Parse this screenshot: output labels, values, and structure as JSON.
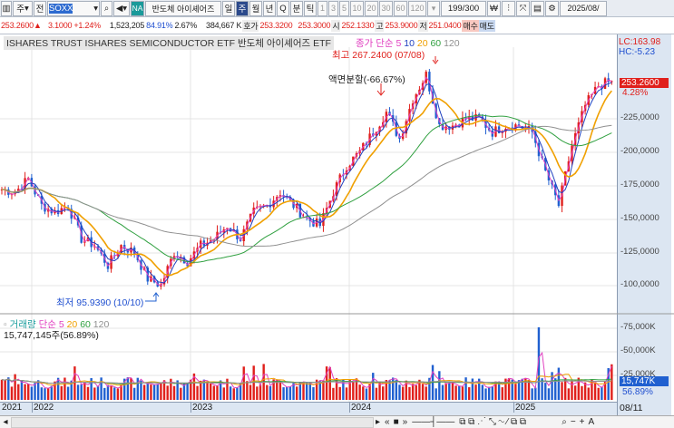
{
  "toolbar": {
    "market": "주",
    "code_label": "전",
    "symbol": "SOXX",
    "na_badge": "NA",
    "name": "반도체 아이셰어즈",
    "periods": [
      "일",
      "주",
      "월",
      "년",
      "Q"
    ],
    "selected_period": "주",
    "intraday": [
      "분",
      "틱"
    ],
    "intervals": [
      "1",
      "3",
      "5",
      "10",
      "20",
      "30",
      "60",
      "120"
    ],
    "count": "199",
    "count_max": "/300",
    "date": "2025/08/"
  },
  "info": {
    "price": "253.2600▲",
    "change": "3.1000",
    "change_pct": "+1.24%",
    "volume": "1,523,205",
    "vol_ratio": "84.91%",
    "turnover": "2.67%",
    "amount": "384,667 K",
    "quote_label": "호가",
    "ask": "253.3200",
    "bid": "253.3000",
    "open_label": "시",
    "open": "252.1330",
    "high_label": "고",
    "high": "253.9000",
    "low_label": "저",
    "low": "251.0400",
    "buy_btn": "매수",
    "sell_btn": "매도"
  },
  "chart": {
    "title": "ISHARES TRUST ISHARES SEMICONDUCTOR ETF  반도체 아이셰어즈 ETF",
    "legend_label": "종가 단순",
    "ma": [
      "5",
      "10",
      "20",
      "60",
      "120"
    ],
    "ma_colors": [
      "#e040c0",
      "#2040c0",
      "#f0a000",
      "#30a040",
      "#909090"
    ],
    "lc": "LC:163.98",
    "hc": "HC:-5.23",
    "high_note": "최고 267.2400 (07/08)",
    "low_note": "최저 95.9390 (10/10)",
    "split_note": "액면분할(-66.67%)",
    "current": "253.2600",
    "current_pct": "4.28%",
    "y_ticks": [
      "225,0000",
      "200,0000",
      "175,0000",
      "150,0000",
      "125,0000",
      "100,0000"
    ]
  },
  "volume": {
    "legend_label": "거래량",
    "legend_ma": "단순",
    "ma": [
      "5",
      "20",
      "60",
      "120"
    ],
    "value": "15,747,145주(56.89%)",
    "current": "15,747K",
    "current_pct": "56.89%",
    "y_ticks": [
      "75,000K",
      "50,000K",
      "25,000K"
    ]
  },
  "dates": {
    "labels": [
      "2021",
      "2022",
      "2023",
      "2024",
      "2025"
    ],
    "right": "08/11"
  },
  "chart_data": {
    "type": "candlestick",
    "title": "ISHARES TRUST ISHARES SEMICONDUCTOR ETF",
    "start": "2021-10",
    "monthly_close": [
      172,
      170,
      180,
      160,
      155,
      160,
      135,
      130,
      115,
      130,
      125,
      105,
      100,
      125,
      118,
      130,
      135,
      145,
      135,
      155,
      160,
      170,
      160,
      150,
      145,
      170,
      190,
      200,
      215,
      230,
      210,
      240,
      258,
      220,
      220,
      225,
      225,
      215,
      220,
      220,
      215,
      185,
      160,
      205,
      235,
      250,
      253.26
    ],
    "ylim": [
      90,
      270
    ]
  }
}
